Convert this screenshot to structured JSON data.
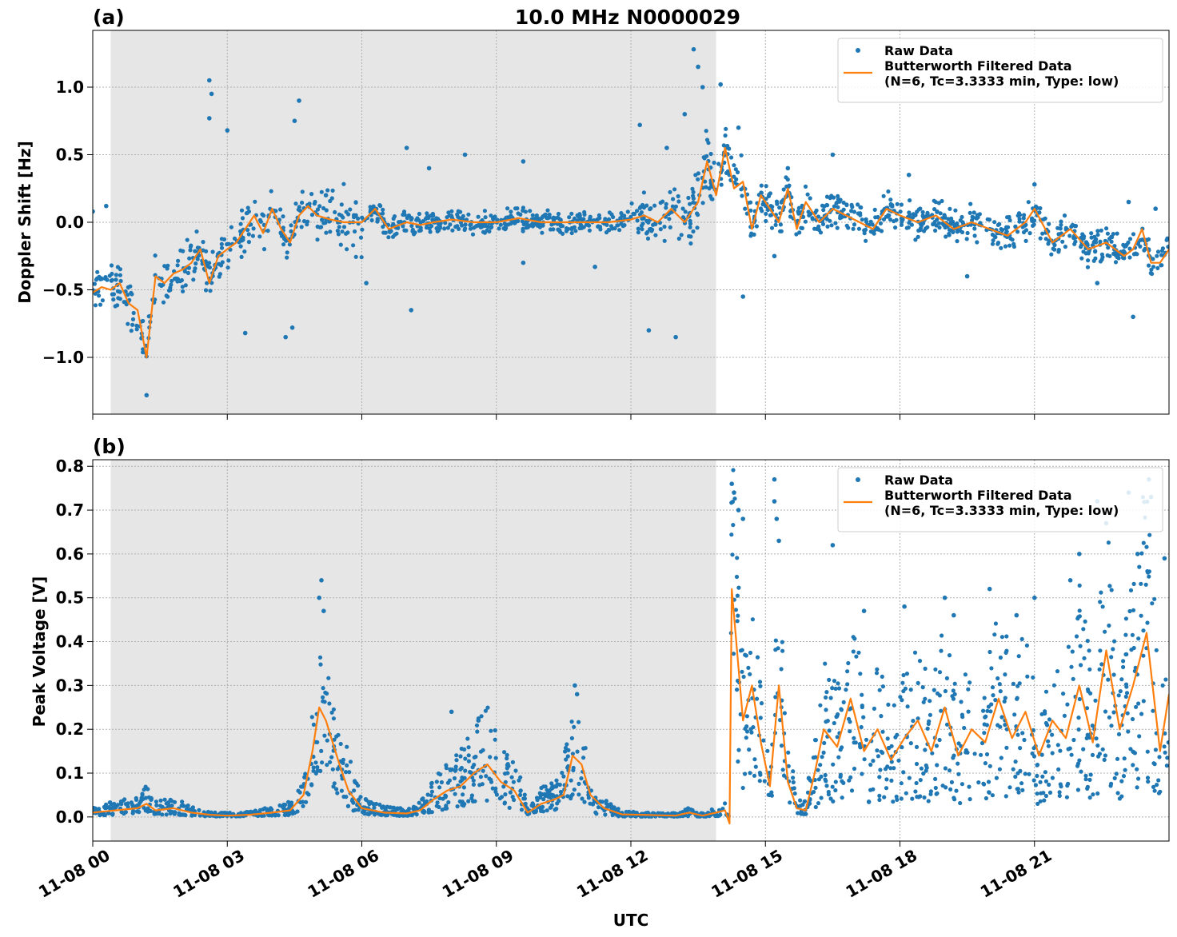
{
  "figure": {
    "title": "10.0 MHz N0000029",
    "xlabel": "UTC",
    "shared_x_ticks": [
      "11-08 00",
      "11-08 03",
      "11-08 06",
      "11-08 09",
      "11-08 12",
      "11-08 15",
      "11-08 18",
      "11-08 21"
    ]
  },
  "colors": {
    "raw": "#1f77b4",
    "filtered": "#ff7f0e",
    "night_shade": "#e6e6e6",
    "grid": "#b0b0b0"
  },
  "chart_data": [
    {
      "type": "scatter",
      "panel_label": "(a)",
      "title": "10.0 MHz N0000029",
      "ylabel": "Doppler Shift [Hz]",
      "xlabel": "",
      "x_unit": "hours UTC on 11-08",
      "xlim": [
        0,
        24
      ],
      "ylim": [
        -1.42,
        1.42
      ],
      "yticks": [
        -1.0,
        -0.5,
        0.0,
        0.5,
        1.0
      ],
      "ytick_labels": [
        "−1.0",
        "−0.5",
        "0.0",
        "0.5",
        "1.0"
      ],
      "shaded_interval_hours": [
        0.4,
        13.9
      ],
      "grid": true,
      "legend_position": "upper right",
      "legend": [
        "Raw Data",
        "Butterworth Filtered Data",
        "(N=6, Tc=3.3333 min, Type: low)"
      ],
      "series": [
        {
          "name": "Butterworth Filtered Data",
          "kind": "line",
          "x": [
            0.0,
            0.2,
            0.4,
            0.6,
            0.8,
            1.0,
            1.2,
            1.4,
            1.6,
            1.8,
            2.0,
            2.2,
            2.4,
            2.6,
            2.8,
            3.0,
            3.2,
            3.4,
            3.6,
            3.8,
            4.0,
            4.2,
            4.4,
            4.6,
            4.8,
            5.0,
            5.3,
            5.6,
            6.0,
            6.3,
            6.6,
            7.0,
            7.3,
            7.6,
            8.0,
            8.5,
            9.0,
            9.5,
            10.0,
            10.5,
            11.0,
            11.5,
            12.0,
            12.3,
            12.6,
            12.9,
            13.2,
            13.5,
            13.7,
            13.9,
            14.1,
            14.3,
            14.5,
            14.7,
            14.9,
            15.1,
            15.3,
            15.5,
            15.7,
            15.9,
            16.2,
            16.5,
            16.8,
            17.1,
            17.4,
            17.7,
            18.0,
            18.4,
            18.8,
            19.2,
            19.6,
            20.0,
            20.4,
            20.8,
            21.0,
            21.4,
            21.8,
            22.2,
            22.6,
            23.0,
            23.2,
            23.4,
            23.6,
            23.8,
            24.0
          ],
          "y": [
            -0.52,
            -0.48,
            -0.5,
            -0.45,
            -0.6,
            -0.65,
            -1.0,
            -0.4,
            -0.45,
            -0.38,
            -0.35,
            -0.3,
            -0.2,
            -0.45,
            -0.25,
            -0.2,
            -0.15,
            -0.05,
            0.05,
            -0.08,
            0.1,
            -0.05,
            -0.15,
            0.05,
            0.12,
            0.05,
            0.02,
            0.0,
            0.0,
            0.1,
            -0.05,
            0.0,
            -0.02,
            0.0,
            0.02,
            0.0,
            0.0,
            0.03,
            0.0,
            0.0,
            0.0,
            0.0,
            0.02,
            0.05,
            0.0,
            0.1,
            0.0,
            0.15,
            0.45,
            0.2,
            0.55,
            0.25,
            0.3,
            -0.05,
            0.2,
            0.1,
            0.0,
            0.25,
            -0.05,
            0.15,
            0.0,
            0.1,
            0.05,
            0.0,
            -0.05,
            0.1,
            0.05,
            0.0,
            0.05,
            -0.05,
            0.0,
            -0.05,
            -0.1,
            0.0,
            0.1,
            -0.15,
            -0.05,
            -0.2,
            -0.15,
            -0.25,
            -0.2,
            -0.05,
            -0.3,
            -0.3,
            -0.2
          ]
        },
        {
          "name": "Raw Data",
          "kind": "scatter",
          "spread": {
            "x_breaks": [
              0,
              2,
              4,
              5,
              6,
              11,
              12,
              13.3,
              13.9,
              14.7,
              24
            ],
            "half_width": [
              0.2,
              0.22,
              0.18,
              0.3,
              0.1,
              0.08,
              0.2,
              0.32,
              0.22,
              0.15,
              0.15
            ]
          },
          "outliers": [
            [
              0.0,
              0.08
            ],
            [
              0.3,
              0.12
            ],
            [
              1.2,
              -1.28
            ],
            [
              2.6,
              1.05
            ],
            [
              2.65,
              0.95
            ],
            [
              2.6,
              0.77
            ],
            [
              3.0,
              0.68
            ],
            [
              3.4,
              -0.82
            ],
            [
              4.6,
              0.9
            ],
            [
              4.5,
              0.75
            ],
            [
              4.3,
              -0.85
            ],
            [
              4.45,
              -0.78
            ],
            [
              5.2,
              0.2
            ],
            [
              6.1,
              -0.45
            ],
            [
              7.0,
              0.55
            ],
            [
              7.1,
              -0.65
            ],
            [
              7.5,
              0.4
            ],
            [
              8.3,
              0.5
            ],
            [
              9.6,
              0.45
            ],
            [
              9.6,
              -0.3
            ],
            [
              11.2,
              -0.33
            ],
            [
              12.2,
              0.72
            ],
            [
              12.4,
              -0.8
            ],
            [
              12.8,
              0.55
            ],
            [
              13.0,
              -0.85
            ],
            [
              13.4,
              1.28
            ],
            [
              13.5,
              1.15
            ],
            [
              13.2,
              0.8
            ],
            [
              13.6,
              1.0
            ],
            [
              14.0,
              1.02
            ],
            [
              14.5,
              -0.55
            ],
            [
              14.4,
              0.7
            ],
            [
              15.2,
              -0.25
            ],
            [
              15.5,
              0.4
            ],
            [
              16.5,
              0.5
            ],
            [
              18.2,
              0.35
            ],
            [
              19.5,
              -0.4
            ],
            [
              21.0,
              0.28
            ],
            [
              22.4,
              -0.45
            ],
            [
              23.1,
              0.15
            ],
            [
              23.2,
              -0.7
            ],
            [
              23.7,
              0.1
            ]
          ]
        }
      ]
    },
    {
      "type": "scatter",
      "panel_label": "(b)",
      "ylabel": "Peak Voltage [V]",
      "xlabel": "UTC",
      "x_unit": "hours UTC on 11-08",
      "xlim": [
        0,
        24
      ],
      "ylim": [
        -0.055,
        0.815
      ],
      "yticks": [
        0.0,
        0.1,
        0.2,
        0.3,
        0.4,
        0.5,
        0.6,
        0.7,
        0.8
      ],
      "ytick_labels": [
        "0.0",
        "0.1",
        "0.2",
        "0.3",
        "0.4",
        "0.5",
        "0.6",
        "0.7",
        "0.8"
      ],
      "xtick_labels": [
        "11-08 00",
        "11-08 03",
        "11-08 06",
        "11-08 09",
        "11-08 12",
        "11-08 15",
        "11-08 18",
        "11-08 21"
      ],
      "shaded_interval_hours": [
        0.4,
        13.9
      ],
      "grid": true,
      "legend_position": "upper right",
      "legend": [
        "Raw Data",
        "Butterworth Filtered Data",
        "(N=6, Tc=3.3333 min, Type: low)"
      ],
      "series": [
        {
          "name": "Butterworth Filtered Data",
          "kind": "line",
          "x": [
            0.0,
            0.5,
            1.0,
            1.2,
            1.4,
            1.8,
            2.2,
            2.6,
            3.0,
            3.5,
            4.0,
            4.4,
            4.7,
            4.9,
            5.05,
            5.2,
            5.35,
            5.5,
            5.7,
            6.0,
            6.5,
            7.0,
            7.3,
            7.6,
            7.9,
            8.2,
            8.5,
            8.8,
            9.1,
            9.4,
            9.7,
            10.0,
            10.3,
            10.5,
            10.7,
            10.9,
            11.1,
            11.4,
            11.8,
            12.2,
            12.6,
            13.0,
            13.3,
            13.6,
            13.9,
            14.1,
            14.2,
            14.25,
            14.35,
            14.5,
            14.7,
            14.9,
            15.1,
            15.3,
            15.5,
            15.7,
            15.9,
            16.1,
            16.3,
            16.6,
            16.9,
            17.2,
            17.5,
            17.8,
            18.1,
            18.4,
            18.7,
            19.0,
            19.3,
            19.6,
            19.9,
            20.2,
            20.5,
            20.8,
            21.1,
            21.4,
            21.7,
            22.0,
            22.3,
            22.6,
            22.9,
            23.2,
            23.5,
            23.8,
            24.0
          ],
          "y": [
            0.01,
            0.015,
            0.02,
            0.03,
            0.015,
            0.02,
            0.01,
            0.005,
            0.003,
            0.005,
            0.01,
            0.015,
            0.05,
            0.15,
            0.25,
            0.22,
            0.17,
            0.12,
            0.06,
            0.02,
            0.01,
            0.008,
            0.015,
            0.04,
            0.06,
            0.07,
            0.1,
            0.12,
            0.08,
            0.06,
            0.01,
            0.03,
            0.04,
            0.05,
            0.14,
            0.12,
            0.05,
            0.02,
            0.006,
            0.005,
            0.004,
            0.003,
            0.01,
            0.003,
            0.01,
            0.015,
            -0.015,
            0.52,
            0.4,
            0.22,
            0.3,
            0.17,
            0.07,
            0.3,
            0.08,
            0.02,
            0.015,
            0.1,
            0.2,
            0.16,
            0.27,
            0.15,
            0.2,
            0.13,
            0.18,
            0.22,
            0.15,
            0.25,
            0.14,
            0.2,
            0.17,
            0.27,
            0.18,
            0.24,
            0.14,
            0.22,
            0.18,
            0.3,
            0.17,
            0.38,
            0.2,
            0.3,
            0.42,
            0.15,
            0.28
          ]
        },
        {
          "name": "Raw Data",
          "kind": "scatter",
          "spread": {
            "x_breaks": [
              0,
              4.7,
              5.6,
              7.3,
              9.5,
              10.6,
              11.2,
              14.2,
              15.0,
              15.5,
              16.0,
              24
            ],
            "lower_factor": [
              0.3,
              0.4,
              0.3,
              0.3,
              0.4,
              0.35,
              0.2,
              0.3,
              0.4,
              0.4,
              0.2
            ],
            "upper_factor": [
              2.4,
              1.6,
              2.4,
              2.2,
              2.4,
              1.8,
              2.2,
              1.7,
              1.9,
              2.4,
              1.9
            ]
          },
          "outliers": [
            [
              5.1,
              0.54
            ],
            [
              5.05,
              0.5
            ],
            [
              5.15,
              0.47
            ],
            [
              10.75,
              0.3
            ],
            [
              10.8,
              0.28
            ],
            [
              8.0,
              0.24
            ],
            [
              8.6,
              0.22
            ],
            [
              14.25,
              0.76
            ],
            [
              14.3,
              0.74
            ],
            [
              14.4,
              0.7
            ],
            [
              14.5,
              0.68
            ],
            [
              15.2,
              0.77
            ],
            [
              15.2,
              0.72
            ],
            [
              15.25,
              0.68
            ],
            [
              15.3,
              0.63
            ],
            [
              16.5,
              0.62
            ],
            [
              17.2,
              0.47
            ],
            [
              18.1,
              0.48
            ],
            [
              19.0,
              0.5
            ],
            [
              19.2,
              0.46
            ],
            [
              20.0,
              0.52
            ],
            [
              20.6,
              0.46
            ],
            [
              21.0,
              0.5
            ],
            [
              21.8,
              0.54
            ],
            [
              22.0,
              0.6
            ],
            [
              22.4,
              0.72
            ],
            [
              22.6,
              0.67
            ],
            [
              23.1,
              0.74
            ],
            [
              23.3,
              0.6
            ],
            [
              23.55,
              0.77
            ],
            [
              23.6,
              0.73
            ],
            [
              23.9,
              0.59
            ]
          ]
        }
      ]
    }
  ]
}
